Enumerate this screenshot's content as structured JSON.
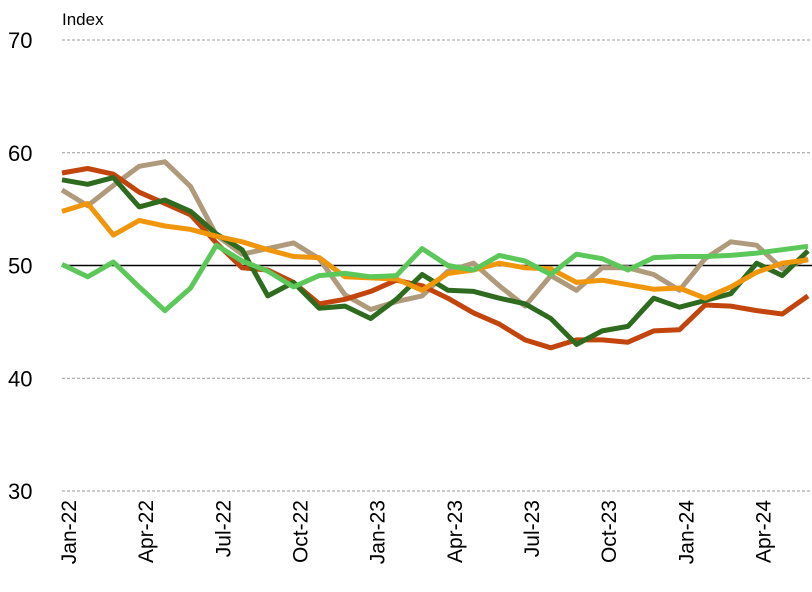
{
  "chart_data": {
    "type": "line",
    "y_label": "Index",
    "categories": [
      "Jan-22",
      null,
      null,
      "Apr-22",
      null,
      null,
      "Jul-22",
      null,
      null,
      "Oct-22",
      null,
      null,
      "Jan-23",
      null,
      null,
      "Apr-23",
      null,
      null,
      "Jul-23",
      null,
      null,
      "Oct-23",
      null,
      null,
      "Jan-24",
      null,
      null,
      "Apr-24",
      null,
      null
    ],
    "series": [
      {
        "color": "#b09a7c",
        "values": [
          56.7,
          55.3,
          57.1,
          58.8,
          59.2,
          57.0,
          52.7,
          51.0,
          51.5,
          52.0,
          50.6,
          47.4,
          46.1,
          46.8,
          47.3,
          49.5,
          50.2,
          48.2,
          46.4,
          49.1,
          47.8,
          49.8,
          49.8,
          49.2,
          47.8,
          50.6,
          52.1,
          51.8,
          49.7,
          50.6
        ]
      },
      {
        "color": "#c2450e",
        "values": [
          58.2,
          58.6,
          58.1,
          56.5,
          55.5,
          54.5,
          52.0,
          49.8,
          49.6,
          48.5,
          46.6,
          47.0,
          47.7,
          48.7,
          48.2,
          47.1,
          45.8,
          44.8,
          43.4,
          42.7,
          43.4,
          43.4,
          43.2,
          44.2,
          44.3,
          46.5,
          46.4,
          46.0,
          45.7,
          47.3
        ]
      },
      {
        "color": "#2e6b1f",
        "values": [
          57.6,
          57.2,
          57.8,
          55.2,
          55.8,
          54.8,
          52.8,
          51.4,
          47.3,
          48.5,
          46.2,
          46.4,
          45.3,
          47.0,
          49.2,
          47.8,
          47.7,
          47.1,
          46.6,
          45.3,
          43.0,
          44.2,
          44.6,
          47.1,
          46.3,
          46.9,
          47.5,
          50.2,
          49.1,
          51.3
        ]
      },
      {
        "color": "#f0960a",
        "values": [
          54.8,
          55.5,
          52.7,
          54.0,
          53.5,
          53.2,
          52.6,
          52.1,
          51.4,
          50.8,
          50.7,
          49.0,
          48.9,
          48.8,
          47.8,
          49.3,
          49.6,
          50.2,
          49.8,
          49.7,
          48.5,
          48.7,
          48.3,
          47.9,
          48.0,
          47.1,
          48.1,
          49.4,
          50.2,
          50.5
        ]
      },
      {
        "color": "#5cc85a",
        "values": [
          50.1,
          49.0,
          50.3,
          48.1,
          46.0,
          48.0,
          51.8,
          50.4,
          49.5,
          48.1,
          49.1,
          49.3,
          49.0,
          49.1,
          51.5,
          50.0,
          49.6,
          50.9,
          50.4,
          49.2,
          51.0,
          50.6,
          49.6,
          50.7,
          50.8,
          50.8,
          50.9,
          51.1,
          51.4,
          51.7
        ]
      }
    ],
    "ylim": [
      30,
      70
    ],
    "yticks": [
      30,
      40,
      50,
      60,
      70
    ],
    "grid": true,
    "reference_line": 50
  }
}
